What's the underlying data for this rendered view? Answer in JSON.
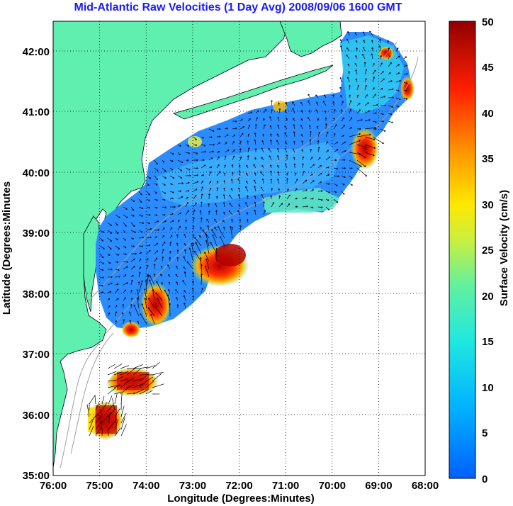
{
  "title": "Mid-Atlantic Raw Velocities (1 Day Avg) 2008/09/06 1600 GMT",
  "map": {
    "xlabel": "Longitude (Degrees:Minutes)",
    "ylabel": "Latitude (Degrees:Minutes",
    "x_ticks": [
      "76:00",
      "75:00",
      "74:00",
      "73:00",
      "72:00",
      "71:00",
      "70:00",
      "69:00",
      "68:00"
    ],
    "y_ticks": [
      "42:00",
      "41:00",
      "40:00",
      "39:00",
      "38:00",
      "37:00",
      "36:00",
      "35:00"
    ],
    "lon_range": [
      -76,
      -68
    ],
    "lat_range": [
      35,
      42.5
    ],
    "land_color": "#5ff0b0",
    "ocean_color": "#ffffff"
  },
  "colorbar": {
    "label": "Surface Velocity (cm/s)",
    "ticks": [
      "50",
      "45",
      "40",
      "35",
      "30",
      "25",
      "20",
      "15",
      "10",
      "5",
      "0"
    ],
    "min": 0,
    "max": 50,
    "colors": [
      "#0070ff",
      "#00c8ff",
      "#20f0d0",
      "#a0f060",
      "#ffe800",
      "#ff9000",
      "#ff2000",
      "#a00000"
    ]
  }
}
